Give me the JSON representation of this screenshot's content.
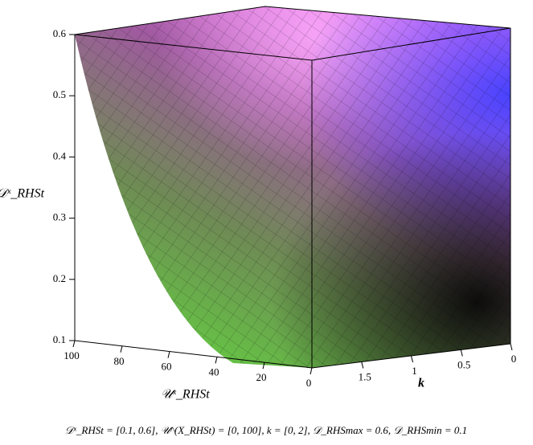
{
  "chart_data": {
    "type": "surface",
    "xlabel": "𝒰ˣ_RHSt",
    "ylabel": "k",
    "zlabel": "𝒟ˣ_RHSt",
    "xlim": [
      0,
      100
    ],
    "xticks": [
      100,
      80,
      60,
      40,
      20,
      0
    ],
    "ylim": [
      0,
      2
    ],
    "yticks": [
      0,
      0.5,
      1,
      1.5
    ],
    "zlim": [
      0.1,
      0.6
    ],
    "zticks": [
      0.1,
      0.2,
      0.3,
      0.4,
      0.5,
      0.6
    ],
    "caption": "𝒟ˣ_RHSt = [0.1, 0.6], 𝒰^(X_RHSt) = [0, 100], k = [0, 2], 𝒟_RHSmax = 0.6, 𝒟_RHSmin = 0.1"
  }
}
